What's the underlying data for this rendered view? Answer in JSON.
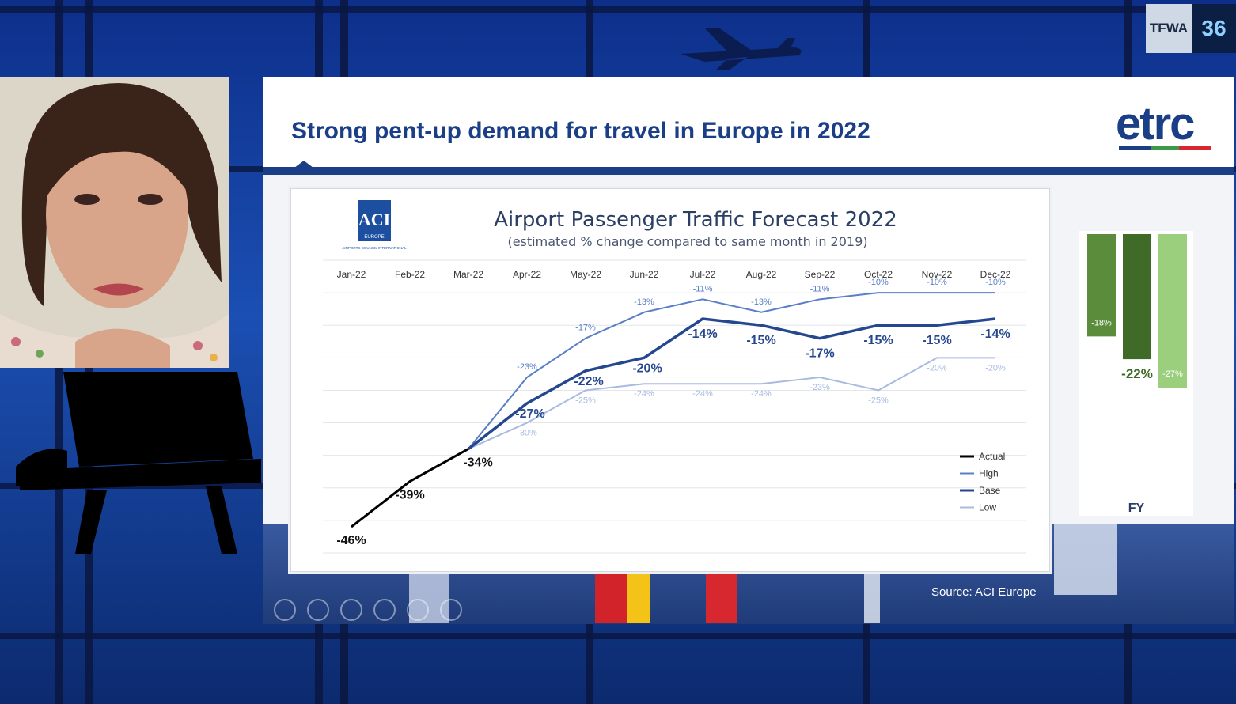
{
  "badge": {
    "org": "TFWA",
    "number": "36"
  },
  "slide": {
    "title": "Strong pent-up demand for travel in Europe in 2022",
    "logo_text": "etrc",
    "source": "Source: ACI Europe"
  },
  "aci_logo": {
    "text": "ACI",
    "sub": "EUROPE",
    "caption": "AIRPORTS COUNCIL INTERNATIONAL"
  },
  "colors": {
    "actual": "#000000",
    "high": "#5b7fc7",
    "base": "#24478f",
    "low": "#a9bbe0",
    "fy_high": "#5b8c3c",
    "fy_base": "#3f6a28",
    "fy_low": "#9ccf7d",
    "brand_blue": "#1a3f86",
    "logo_green": "#3a9a45",
    "logo_red": "#d7282f"
  },
  "chart_data": [
    {
      "type": "line",
      "title": "Airport Passenger Traffic Forecast 2022",
      "subtitle": "(estimated % change compared to same month in 2019)",
      "categories": [
        "Jan-22",
        "Feb-22",
        "Mar-22",
        "Apr-22",
        "May-22",
        "Jun-22",
        "Jul-22",
        "Aug-22",
        "Sep-22",
        "Oct-22",
        "Nov-22",
        "Dec-22"
      ],
      "ylim": [
        -50,
        -5
      ],
      "grid": true,
      "legend_position": "bottom-right",
      "series": [
        {
          "name": "Actual",
          "values": [
            -46,
            -39,
            -34,
            null,
            null,
            null,
            null,
            null,
            null,
            null,
            null,
            null
          ]
        },
        {
          "name": "High",
          "values": [
            null,
            null,
            -34,
            -23,
            -17,
            -13,
            -11,
            -13,
            -11,
            -10,
            -10,
            -10
          ]
        },
        {
          "name": "Base",
          "values": [
            null,
            null,
            -34,
            -27,
            -22,
            -20,
            -14,
            -15,
            -17,
            -15,
            -15,
            -14
          ]
        },
        {
          "name": "Low",
          "values": [
            null,
            null,
            -34,
            -30,
            -25,
            -24,
            -24,
            -24,
            -23,
            -25,
            -20,
            -20
          ]
        }
      ],
      "labels": {
        "Actual": [
          "-46%",
          "-39%",
          "-34%",
          null,
          null,
          null,
          null,
          null,
          null,
          null,
          null,
          null
        ],
        "High": [
          null,
          null,
          null,
          "-23%",
          "-17%",
          "-13%",
          "-11%",
          "-13%",
          "-11%",
          "-10%",
          "-10%",
          "-10%"
        ],
        "Base": [
          null,
          null,
          null,
          "-27%",
          "-22%",
          "-20%",
          "-14%",
          "-15%",
          "-17%",
          "-15%",
          "-15%",
          "-14%"
        ],
        "Low": [
          null,
          null,
          null,
          "-30%",
          "-25%",
          "-24%",
          "-24%",
          "-24%",
          "-23%",
          "-25%",
          "-20%",
          "-20%"
        ]
      }
    },
    {
      "type": "bar",
      "categories": [
        "FY"
      ],
      "xlabel": "FY",
      "ylim": [
        -30,
        0
      ],
      "series": [
        {
          "name": "High",
          "values": [
            -18
          ],
          "label": "-18%"
        },
        {
          "name": "Base",
          "values": [
            -22
          ],
          "label": "-22%"
        },
        {
          "name": "Low",
          "values": [
            -27
          ],
          "label": "-27%"
        }
      ]
    }
  ]
}
